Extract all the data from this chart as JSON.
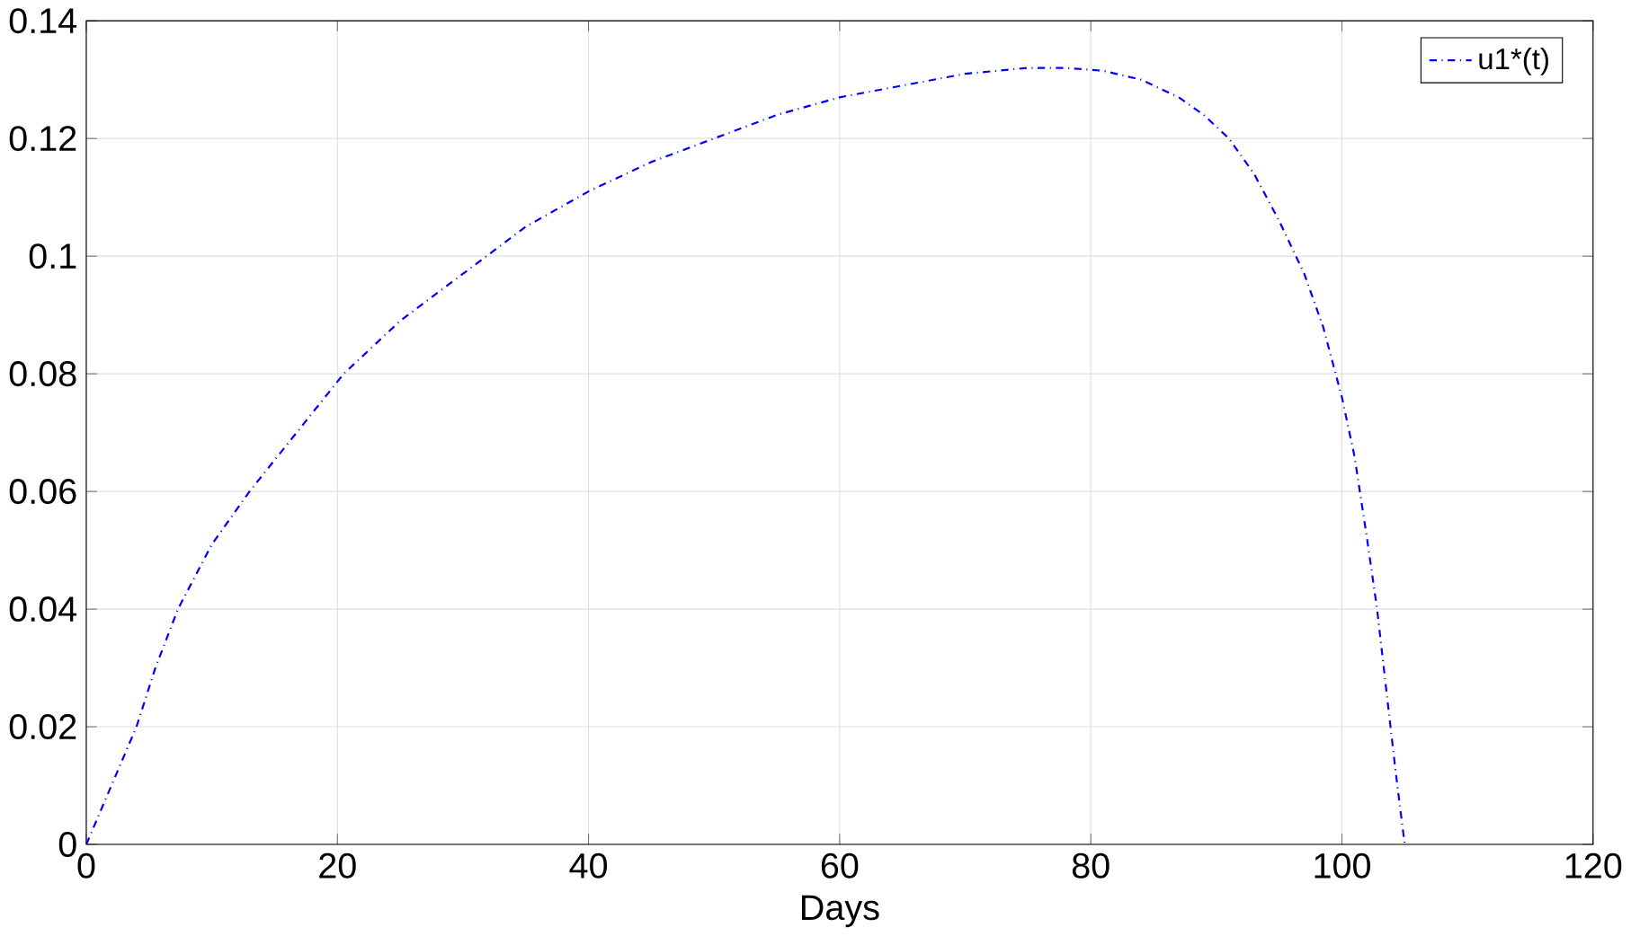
{
  "chart_data": {
    "type": "line",
    "xlabel": "Days",
    "series": [
      {
        "name": "u1*(t)",
        "color": "#0000ff",
        "line_style": "dashdot",
        "x": [
          0,
          2,
          4,
          5.5,
          7.3,
          10,
          13,
          16,
          20.5,
          25,
          30,
          35,
          40,
          45,
          50,
          55,
          60,
          65,
          70,
          75,
          78,
          81,
          84,
          87,
          89,
          91,
          93,
          95,
          97,
          98.5,
          100,
          101,
          102,
          102.8,
          103.6,
          104.3,
          105
        ],
        "values": [
          0,
          0.01,
          0.02,
          0.03,
          0.04,
          0.051,
          0.06,
          0.068,
          0.08,
          0.089,
          0.097,
          0.105,
          0.111,
          0.116,
          0.12,
          0.124,
          0.127,
          0.129,
          0.131,
          0.132,
          0.132,
          0.1315,
          0.13,
          0.127,
          0.124,
          0.12,
          0.114,
          0.106,
          0.097,
          0.088,
          0.076,
          0.066,
          0.052,
          0.04,
          0.025,
          0.012,
          0
        ]
      }
    ],
    "xlim": [
      0,
      120
    ],
    "ylim": [
      0,
      0.14
    ],
    "xticks": [
      0,
      20,
      40,
      60,
      80,
      100,
      120
    ],
    "yticks": [
      0,
      0.02,
      0.04,
      0.06,
      0.08,
      0.1,
      0.12,
      0.14
    ],
    "grid": true,
    "legend": "top right"
  }
}
